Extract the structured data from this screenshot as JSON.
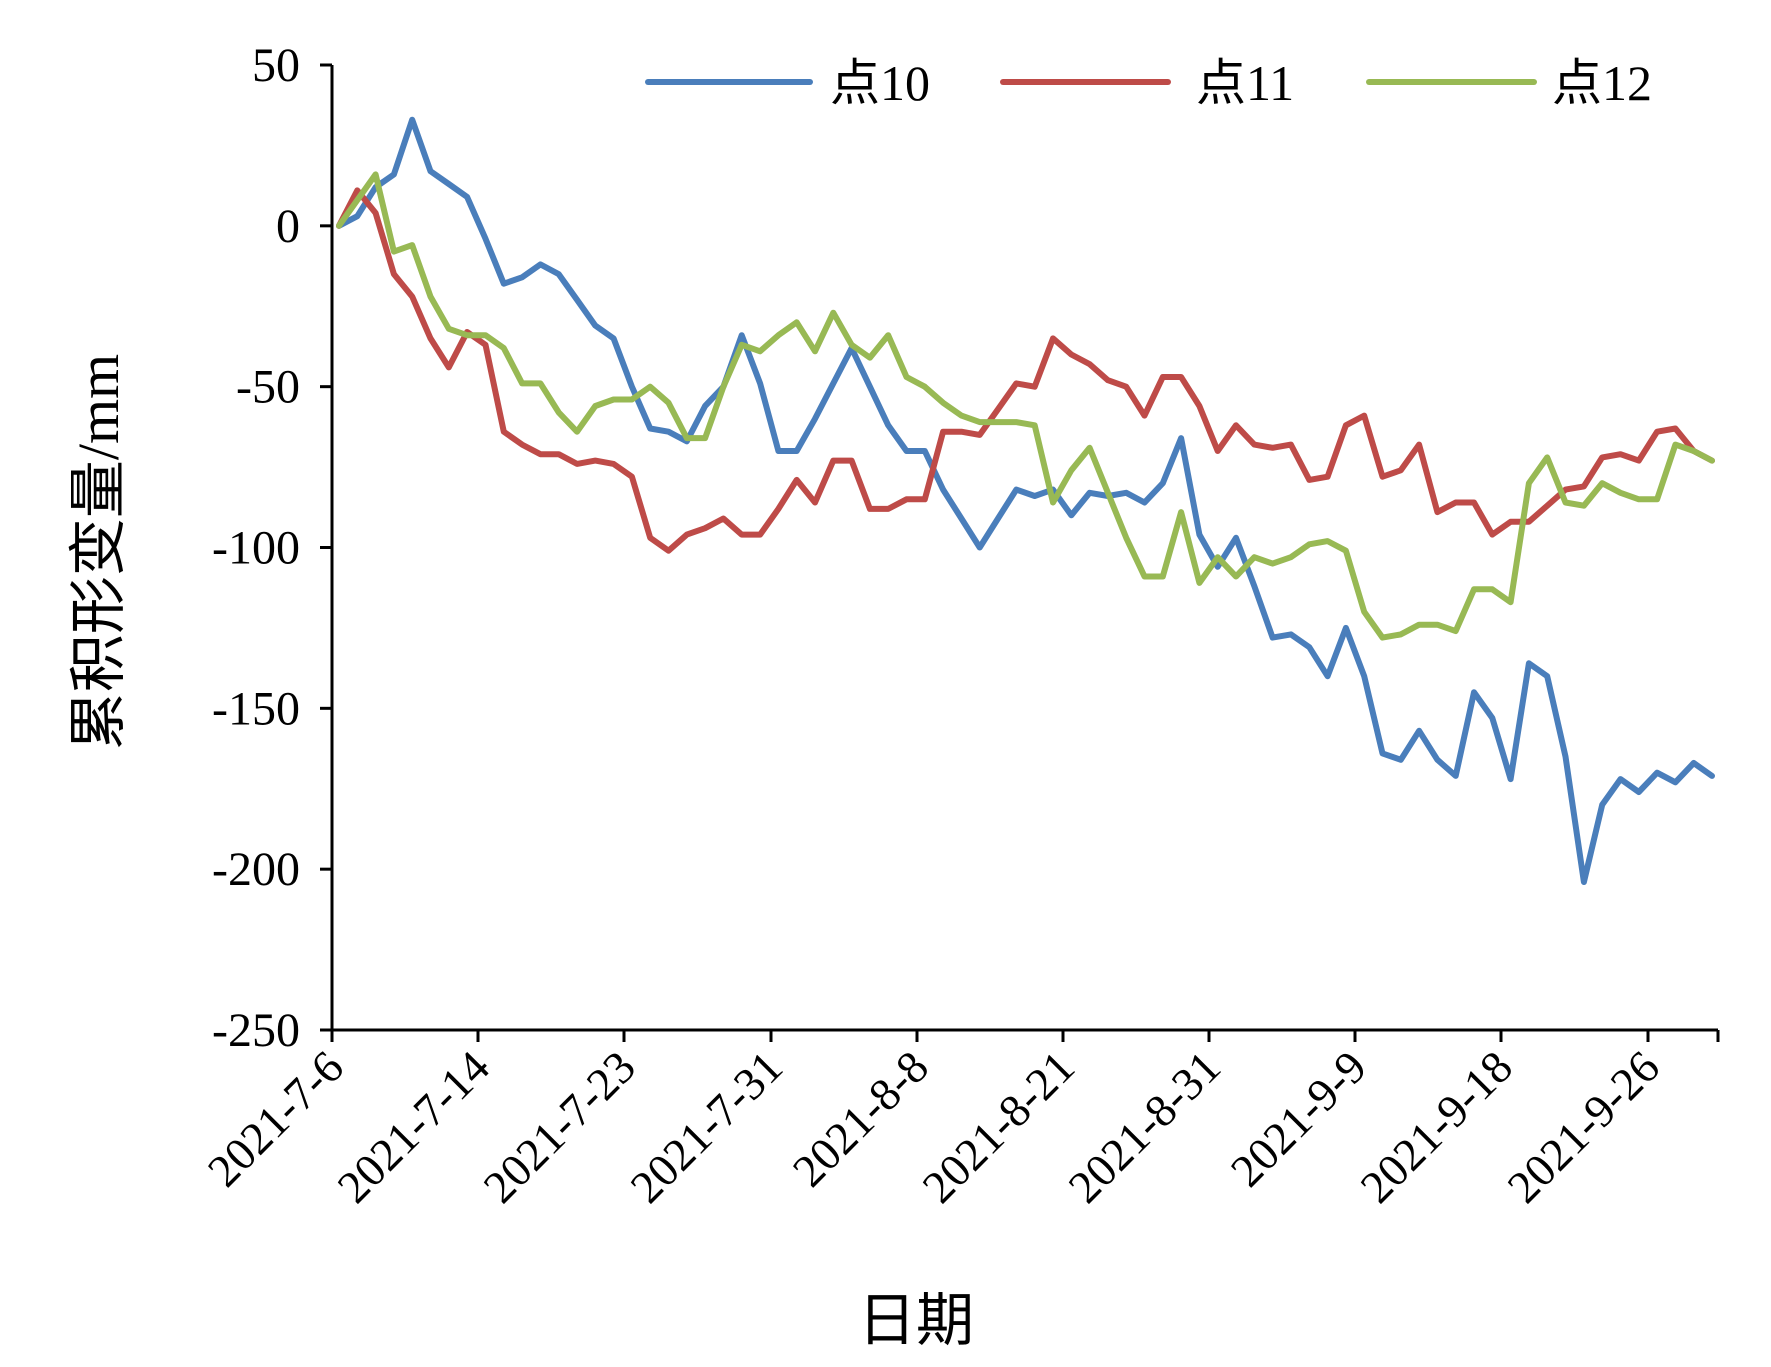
{
  "chart_data": {
    "type": "line",
    "title": "",
    "xlabel": "日期",
    "ylabel": "累积形变量/mm",
    "ylim": [
      -250,
      50
    ],
    "yticks": [
      50,
      0,
      -50,
      -100,
      -150,
      -200,
      -250
    ],
    "xtick_labels": [
      "2021-7-6",
      "2021-7-14",
      "2021-7-23",
      "2021-7-31",
      "2021-8-8",
      "2021-8-21",
      "2021-8-31",
      "2021-9-9",
      "2021-9-18",
      "2021-9-26"
    ],
    "legend_position": "top",
    "grid": false,
    "series": [
      {
        "name": "点10",
        "color": "#4a7ebb",
        "values": [
          0,
          3,
          12,
          16,
          33,
          17,
          13,
          9,
          -4,
          -18,
          -16,
          -12,
          -15,
          -23,
          -31,
          -35,
          -50,
          -63,
          -64,
          -67,
          -56,
          -50,
          -34,
          -49,
          -70,
          -70,
          -60,
          -49,
          -38,
          -50,
          -62,
          -70,
          -70,
          -82,
          -91,
          -100,
          -91,
          -82,
          -84,
          -82,
          -90,
          -83,
          -84,
          -83,
          -86,
          -80,
          -66,
          -96,
          -106,
          -97,
          -112,
          -128,
          -127,
          -131,
          -140,
          -125,
          -140,
          -164,
          -166,
          -157,
          -166,
          -171,
          -145,
          -153,
          -172,
          -136,
          -140,
          -165,
          -204,
          -180,
          -172,
          -176,
          -170,
          -173,
          -167,
          -171
        ]
      },
      {
        "name": "点11",
        "color": "#be4b48",
        "values": [
          0,
          11,
          4,
          -15,
          -22,
          -35,
          -44,
          -33,
          -37,
          -64,
          -68,
          -71,
          -71,
          -74,
          -73,
          -74,
          -78,
          -97,
          -101,
          -96,
          -94,
          -91,
          -96,
          -96,
          -88,
          -79,
          -86,
          -73,
          -73,
          -88,
          -88,
          -85,
          -85,
          -64,
          -64,
          -65,
          -57,
          -49,
          -50,
          -35,
          -40,
          -43,
          -48,
          -50,
          -59,
          -47,
          -47,
          -56,
          -70,
          -62,
          -68,
          -69,
          -68,
          -79,
          -78,
          -62,
          -59,
          -78,
          -76,
          -68,
          -89,
          -86,
          -86,
          -96,
          -92,
          -92,
          -87,
          -82,
          -81,
          -72,
          -71,
          -73,
          -64,
          -63,
          -70,
          -73
        ]
      },
      {
        "name": "点12",
        "color": "#98b954",
        "values": [
          0,
          8,
          16,
          -8,
          -6,
          -22,
          -32,
          -34,
          -34,
          -38,
          -49,
          -49,
          -58,
          -64,
          -56,
          -54,
          -54,
          -50,
          -55,
          -66,
          -66,
          -50,
          -37,
          -39,
          -34,
          -30,
          -39,
          -27,
          -37,
          -41,
          -34,
          -47,
          -50,
          -55,
          -59,
          -61,
          -61,
          -61,
          -62,
          -86,
          -76,
          -69,
          -83,
          -97,
          -109,
          -109,
          -89,
          -111,
          -103,
          -109,
          -103,
          -105,
          -103,
          -99,
          -98,
          -101,
          -120,
          -128,
          -127,
          -124,
          -124,
          -126,
          -113,
          -113,
          -117,
          -80,
          -72,
          -86,
          -87,
          -80,
          -83,
          -85,
          -85,
          -68,
          -70,
          -73
        ]
      }
    ]
  }
}
